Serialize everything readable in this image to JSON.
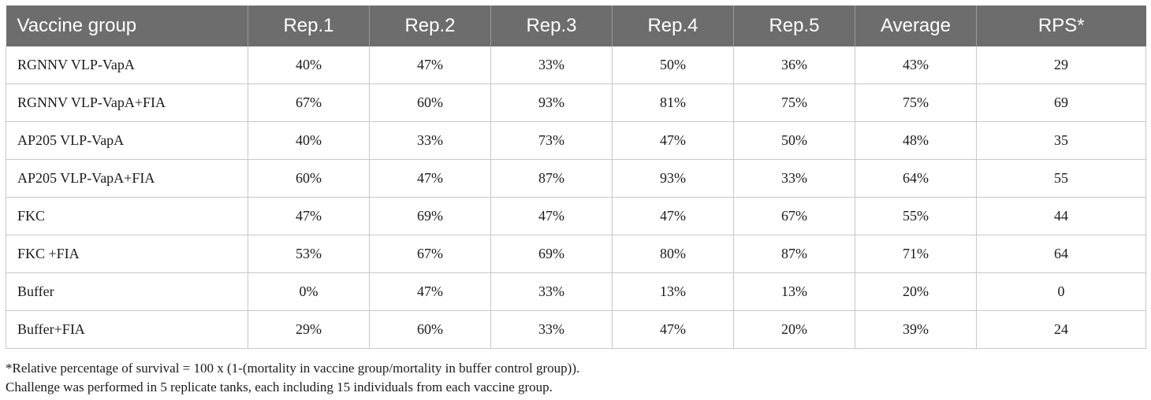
{
  "table": {
    "headers": [
      "Vaccine group",
      "Rep.1",
      "Rep.2",
      "Rep.3",
      "Rep.4",
      "Rep.5",
      "Average",
      "RPS*"
    ],
    "rows": [
      [
        "RGNNV VLP-VapA",
        "40%",
        "47%",
        "33%",
        "50%",
        "36%",
        "43%",
        "29"
      ],
      [
        "RGNNV VLP-VapA+FIA",
        "67%",
        "60%",
        "93%",
        "81%",
        "75%",
        "75%",
        "69"
      ],
      [
        "AP205 VLP-VapA",
        "40%",
        "33%",
        "73%",
        "47%",
        "50%",
        "48%",
        "35"
      ],
      [
        "AP205 VLP-VapA+FIA",
        "60%",
        "47%",
        "87%",
        "93%",
        "33%",
        "64%",
        "55"
      ],
      [
        "FKC",
        "47%",
        "69%",
        "47%",
        "47%",
        "67%",
        "55%",
        "44"
      ],
      [
        "FKC +FIA",
        "53%",
        "67%",
        "69%",
        "80%",
        "87%",
        "71%",
        "64"
      ],
      [
        "Buffer",
        "0%",
        "47%",
        "33%",
        "13%",
        "13%",
        "20%",
        "0"
      ],
      [
        "Buffer+FIA",
        "29%",
        "60%",
        "33%",
        "47%",
        "20%",
        "39%",
        "24"
      ]
    ]
  },
  "footnotes": [
    "*Relative percentage of survival = 100 x (1-(mortality in vaccine group/mortality in buffer control group)).",
    "Challenge was performed in 5 replicate tanks, each including 15 individuals from each vaccine group."
  ],
  "colors": {
    "header_bg": "#6d6d6d",
    "header_text": "#ffffff",
    "grid": "#c8c8c8"
  }
}
